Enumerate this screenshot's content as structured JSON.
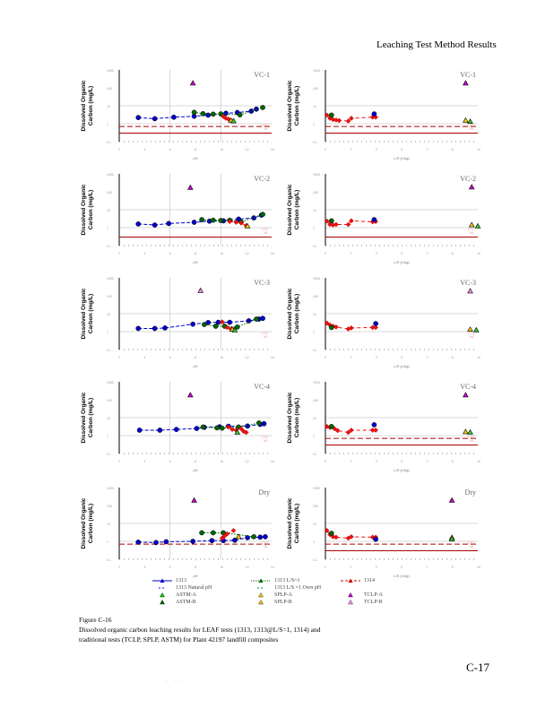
{
  "header": {
    "title": "Leaching Test Method Results"
  },
  "axis_labels": {
    "y": [
      "Dissolved Organic",
      "Carbon (mg/L)"
    ],
    "x_left": "pH",
    "x_right": "L/S (L/kg)",
    "loq": "LOQ",
    "ml": "ML"
  },
  "legend": [
    {
      "label": "1313",
      "color": "#0000cc",
      "style": "solid-line-triangle"
    },
    {
      "label": "1313 L/S=1",
      "color": "#006600",
      "style": "dotted-line-square"
    },
    {
      "label": "1314",
      "color": "#cc0000",
      "style": "dashed-line-triangle"
    },
    {
      "label": "1313 Natural pH",
      "color": "#0000cc",
      "style": "dots"
    },
    {
      "label": "1313 L/S =1 Own pH",
      "color": "#006600",
      "style": "dots"
    },
    {
      "label": "ASTM-A",
      "color": "#00cc00",
      "style": "triangle"
    },
    {
      "label": "SPLP-A",
      "color": "#ffcc00",
      "style": "triangle"
    },
    {
      "label": "TCLP-A",
      "color": "#cc00cc",
      "style": "triangle"
    },
    {
      "label": "ASTM-B",
      "color": "#006600",
      "style": "triangle"
    },
    {
      "label": "SPLP-B",
      "color": "#ffcc00",
      "style": "triangle"
    },
    {
      "label": "TCLP-B",
      "color": "#ff99ff",
      "style": "triangle"
    }
  ],
  "caption": {
    "fig": "Figure C-16",
    "line1": "Dissolved organic carbon leaching results for LEAF tests (1313, 1313@L/S=1, 1314) and",
    "line2": "traditional tests (TCLP, SPLP, ASTM) for Plant 42197 landfill composites"
  },
  "page_number": "C-17",
  "footer_marks": ". : .",
  "colors": {
    "m1313": "#0000cc",
    "m1313ls1": "#006600",
    "m1314": "#ee1111",
    "tclp": "#cc00cc",
    "tclp_b": "#ff88ee",
    "spl": "#ffcc00",
    "astm": "#33cc33",
    "loq_line": "#aa0000",
    "ml_line": "#aa0000",
    "grid": "#cccccc"
  },
  "chart_data": [
    {
      "type": "scatter",
      "title": "VC-1",
      "panel": "ph",
      "xlabel": "pH",
      "ylabel": "Dissolved Organic Carbon (mg/L)",
      "xlim": [
        2,
        14
      ],
      "ylim": [
        0.1,
        1000
      ],
      "yscale": "log",
      "grid": true,
      "loq": 0.7,
      "ml": 0.3,
      "series": [
        {
          "name": "1313",
          "x": [
            3.5,
            4.8,
            6.3,
            7.9,
            9,
            10.4,
            11.3,
            12.4,
            12.8
          ],
          "y": [
            2.2,
            1.9,
            2.3,
            2.6,
            3.0,
            3.8,
            4.2,
            5.0,
            6.5
          ]
        },
        {
          "name": "1313 L/S=1",
          "x": [
            7.9,
            8.6,
            9.4,
            10,
            11.5,
            13.3
          ],
          "y": [
            4.3,
            3.6,
            3.4,
            3.5,
            3.1,
            8.0
          ]
        },
        {
          "name": "1314",
          "x": [
            10.2,
            10.4,
            10.6,
            10.8
          ],
          "y": [
            2.5,
            2.0,
            1.8,
            1.5
          ]
        },
        {
          "name": "TCLP-A",
          "x": [
            7.8
          ],
          "y": [
            180
          ]
        },
        {
          "name": "SPLP-A",
          "x": [
            10.8
          ],
          "y": [
            1.5
          ]
        },
        {
          "name": "ASTM-A",
          "x": [
            11
          ],
          "y": [
            1.4
          ]
        }
      ]
    },
    {
      "type": "scatter",
      "title": "VC-1",
      "panel": "ls",
      "xlabel": "L/S (L/kg)",
      "ylabel": "Dissolved Organic Carbon (mg/L)",
      "xlim": [
        0,
        10
      ],
      "ylim": [
        0.1,
        1000
      ],
      "yscale": "log",
      "grid": true,
      "loq": 0.7,
      "ml": 0.3,
      "series": [
        {
          "name": "1314",
          "x": [
            0.1,
            0.3,
            0.5,
            0.7,
            0.9,
            1.5,
            1.7,
            3.1,
            3.3
          ],
          "y": [
            3.0,
            2.0,
            1.7,
            1.6,
            1.5,
            1.4,
            2.0,
            2.3,
            2.3
          ]
        },
        {
          "name": "1313 L/S=1",
          "x": [
            0.4
          ],
          "y": [
            3.0
          ]
        },
        {
          "name": "1313 Natural pH",
          "x": [
            3.2
          ],
          "y": [
            3.5
          ]
        },
        {
          "name": "TCLP-A",
          "x": [
            9.2
          ],
          "y": [
            180
          ]
        },
        {
          "name": "SPLP-A",
          "x": [
            9.2
          ],
          "y": [
            1.5
          ]
        },
        {
          "name": "ASTM-A",
          "x": [
            9.5
          ],
          "y": [
            1.3
          ]
        }
      ]
    },
    {
      "type": "scatter",
      "title": "VC-2",
      "panel": "ph",
      "xlabel": "pH",
      "ylabel": "Dissolved Organic Carbon (mg/L)",
      "xlim": [
        2,
        14
      ],
      "ylim": [
        0.1,
        1000
      ],
      "yscale": "log",
      "grid": true,
      "loq": null,
      "ml": 0.3,
      "series": [
        {
          "name": "1313",
          "x": [
            3.5,
            4.8,
            5.9,
            7.9,
            9.1,
            10.2,
            11.4,
            12.6,
            13.2
          ],
          "y": [
            1.6,
            1.4,
            1.7,
            2.0,
            2.3,
            2.4,
            3.0,
            3.5,
            5.0
          ]
        },
        {
          "name": "1313 L/S=1",
          "x": [
            8.5,
            9.4,
            10,
            10.7,
            11.6,
            13.3
          ],
          "y": [
            2.8,
            2.6,
            2.5,
            2.6,
            2.1,
            5.5
          ]
        },
        {
          "name": "1314",
          "x": [
            10.7,
            11.2,
            11.6,
            12
          ],
          "y": [
            2.2,
            2.0,
            1.8,
            1.3
          ]
        },
        {
          "name": "TCLP-A",
          "x": [
            7.6
          ],
          "y": [
            170
          ]
        },
        {
          "name": "SPLP-A",
          "x": [
            12.1
          ],
          "y": [
            1.2
          ]
        }
      ]
    },
    {
      "type": "scatter",
      "title": "VC-2",
      "panel": "ls",
      "xlabel": "L/S (L/kg)",
      "ylabel": "Dissolved Organic Carbon (mg/L)",
      "xlim": [
        0,
        10
      ],
      "ylim": [
        0.1,
        1000
      ],
      "yscale": "log",
      "grid": true,
      "loq": null,
      "ml": 0.3,
      "series": [
        {
          "name": "1314",
          "x": [
            0.1,
            0.3,
            0.5,
            0.7,
            1.5,
            1.7,
            3.1,
            3.3
          ],
          "y": [
            2.3,
            1.5,
            1.4,
            1.5,
            1.5,
            2.4,
            2.1,
            2.2
          ]
        },
        {
          "name": "1313 L/S=1",
          "x": [
            0.4
          ],
          "y": [
            2.4
          ]
        },
        {
          "name": "1313 Natural pH",
          "x": [
            3.2
          ],
          "y": [
            2.8
          ]
        },
        {
          "name": "TCLP-A",
          "x": [
            9.6
          ],
          "y": [
            180
          ]
        },
        {
          "name": "SPLP-A",
          "x": [
            9.6
          ],
          "y": [
            1.4
          ]
        },
        {
          "name": "ASTM-A",
          "x": [
            10
          ],
          "y": [
            1.2
          ]
        }
      ]
    },
    {
      "type": "scatter",
      "title": "VC-3",
      "panel": "ph",
      "xlabel": "pH",
      "ylabel": "Dissolved Organic Carbon (mg/L)",
      "xlim": [
        2,
        14
      ],
      "ylim": [
        0.1,
        1000
      ],
      "yscale": "log",
      "grid": true,
      "loq": null,
      "ml": null,
      "series": [
        {
          "name": "1313",
          "x": [
            3.5,
            4.8,
            5.6,
            7.8,
            9,
            9.8,
            10.7,
            12.2,
            13,
            13.3
          ],
          "y": [
            1.5,
            1.5,
            1.6,
            2.6,
            3.2,
            3.3,
            3.3,
            4.0,
            5.0,
            5.5
          ]
        },
        {
          "name": "1313 L/S=1",
          "x": [
            8.7,
            9.6,
            10.3,
            11.3,
            12.8
          ],
          "y": [
            2.5,
            2.0,
            2.0,
            1.8,
            5.0
          ]
        },
        {
          "name": "1314",
          "x": [
            10.1,
            10.5,
            10.8,
            11
          ],
          "y": [
            3.5,
            1.7,
            1.4,
            1.3
          ]
        },
        {
          "name": "TCLP-B",
          "x": [
            8.4
          ],
          "y": [
            190
          ]
        },
        {
          "name": "SPLP-A",
          "x": [
            10.9
          ],
          "y": [
            1.3
          ]
        },
        {
          "name": "ASTM-A",
          "x": [
            11.1
          ],
          "y": [
            1.2
          ]
        }
      ]
    },
    {
      "type": "scatter",
      "title": "VC-3",
      "panel": "ls",
      "xlabel": "L/S (L/kg)",
      "ylabel": "Dissolved Organic Carbon (mg/L)",
      "xlim": [
        0,
        10
      ],
      "ylim": [
        0.1,
        1000
      ],
      "yscale": "log",
      "grid": true,
      "loq": null,
      "ml": null,
      "series": [
        {
          "name": "1314",
          "x": [
            0.1,
            0.3,
            0.5,
            0.7,
            1.5,
            1.7,
            3.1,
            3.3
          ],
          "y": [
            3.0,
            2.3,
            2.0,
            1.8,
            1.4,
            1.6,
            1.7,
            1.7
          ]
        },
        {
          "name": "1313 L/S=1",
          "x": [
            0.4
          ],
          "y": [
            1.7
          ]
        },
        {
          "name": "1313 Natural pH",
          "x": [
            3.3
          ],
          "y": [
            2.8
          ]
        },
        {
          "name": "TCLP-B",
          "x": [
            9.5
          ],
          "y": [
            180
          ]
        },
        {
          "name": "SPLP-A",
          "x": [
            9.5
          ],
          "y": [
            1.3
          ]
        },
        {
          "name": "ASTM-A",
          "x": [
            9.9
          ],
          "y": [
            1.2
          ]
        }
      ]
    },
    {
      "type": "scatter",
      "title": "VC-4",
      "panel": "ph",
      "xlabel": "pH",
      "ylabel": "Dissolved Organic Carbon (mg/L)",
      "xlim": [
        2,
        14
      ],
      "ylim": [
        0.1,
        1000
      ],
      "yscale": "log",
      "grid": true,
      "loq": null,
      "ml": null,
      "series": [
        {
          "name": "1313",
          "x": [
            3.6,
            5.2,
            6.5,
            8.1,
            8.7,
            9.9,
            10.6,
            12.1,
            13.1,
            13.4
          ],
          "y": [
            2.0,
            2.0,
            2.2,
            2.5,
            2.9,
            3.1,
            3.3,
            3.4,
            4.2,
            4.6
          ]
        },
        {
          "name": "1313 L/S=1",
          "x": [
            8.6,
            9.7,
            10.1,
            11.4,
            13
          ],
          "y": [
            3.0,
            2.7,
            2.6,
            3.0,
            5.0
          ]
        },
        {
          "name": "1314",
          "x": [
            10.6,
            10.9,
            11.2,
            11.6,
            11.8,
            12
          ],
          "y": [
            3.0,
            2.2,
            2.0,
            2.4,
            1.7,
            1.5
          ]
        },
        {
          "name": "TCLP-A",
          "x": [
            7.6
          ],
          "y": [
            180
          ]
        },
        {
          "name": "ASTM-A",
          "x": [
            11.3
          ],
          "y": [
            1.5
          ]
        }
      ]
    },
    {
      "type": "scatter",
      "title": "VC-4",
      "panel": "ls",
      "xlabel": "L/S (L/kg)",
      "ylabel": "Dissolved Organic Carbon (mg/L)",
      "xlim": [
        0,
        10
      ],
      "ylim": [
        0.1,
        1000
      ],
      "yscale": "log",
      "grid": true,
      "loq": 0.7,
      "ml": 0.3,
      "series": [
        {
          "name": "1314",
          "x": [
            0.1,
            0.3,
            0.6,
            0.8,
            1.5,
            1.7,
            3.1,
            3.3
          ],
          "y": [
            3.2,
            2.8,
            2.4,
            1.9,
            1.5,
            2.0,
            2.0,
            2.0
          ]
        },
        {
          "name": "1313 L/S=1",
          "x": [
            0.4
          ],
          "y": [
            3.2
          ]
        },
        {
          "name": "1313 Natural pH",
          "x": [
            3.2
          ],
          "y": [
            4.0
          ]
        },
        {
          "name": "TCLP-A",
          "x": [
            9.2
          ],
          "y": [
            180
          ]
        },
        {
          "name": "SPLP-A",
          "x": [
            9.2
          ],
          "y": [
            1.6
          ]
        },
        {
          "name": "ASTM-A",
          "x": [
            9.5
          ],
          "y": [
            1.5
          ]
        }
      ]
    },
    {
      "type": "scatter",
      "title": "Dry",
      "panel": "ph",
      "xlabel": "pH",
      "ylabel": "Dissolved Organic Carbon (mg/L)",
      "xlim": [
        2,
        14
      ],
      "ylim": [
        0.1,
        1000
      ],
      "yscale": "log",
      "grid": true,
      "loq": 0.7,
      "ml": null,
      "series": [
        {
          "name": "1313",
          "x": [
            3.5,
            4.9,
            5.7,
            7.8,
            9.3,
            10.2,
            11.1,
            12.1,
            13.1,
            13.5
          ],
          "y": [
            0.9,
            0.85,
            0.95,
            1.0,
            1.1,
            1.1,
            1.15,
            1.6,
            1.7,
            1.8
          ]
        },
        {
          "name": "1313 L/S=1",
          "x": [
            8.5,
            9.4,
            10.2,
            12.6
          ],
          "y": [
            3.0,
            3.0,
            3.0,
            1.8
          ]
        },
        {
          "name": "1314",
          "x": [
            10.1,
            10.3,
            10.5,
            11
          ],
          "y": [
            1.5,
            2.0,
            2.6,
            4.0
          ]
        },
        {
          "name": "TCLP-A",
          "x": [
            7.9
          ],
          "y": [
            190
          ]
        },
        {
          "name": "SPLP-A",
          "x": [
            11.4
          ],
          "y": [
            1.8
          ]
        }
      ]
    },
    {
      "type": "scatter",
      "title": "Dry",
      "panel": "ls",
      "xlabel": "L/S (L/kg)",
      "ylabel": "Dissolved Organic Carbon (mg/L)",
      "xlim": [
        0,
        10
      ],
      "ylim": [
        0.1,
        1000
      ],
      "yscale": "log",
      "grid": true,
      "loq": 0.7,
      "ml": 0.3,
      "series": [
        {
          "name": "1314",
          "x": [
            0.1,
            0.3,
            0.5,
            0.7,
            1.5,
            1.7,
            3.1,
            3.3
          ],
          "y": [
            4.0,
            2.4,
            1.8,
            1.7,
            1.5,
            1.8,
            1.7,
            1.7
          ]
        },
        {
          "name": "1313 L/S=1",
          "x": [
            0.4
          ],
          "y": [
            2.8
          ]
        },
        {
          "name": "1313",
          "x": [
            3.3
          ],
          "y": [
            1.3
          ]
        },
        {
          "name": "TCLP-A",
          "x": [
            8.3
          ],
          "y": [
            190
          ]
        },
        {
          "name": "SPLP-A",
          "x": [
            8.3
          ],
          "y": [
            1.6
          ]
        },
        {
          "name": "ASTM-A",
          "x": [
            8.3
          ],
          "y": [
            1.3
          ]
        }
      ]
    }
  ]
}
